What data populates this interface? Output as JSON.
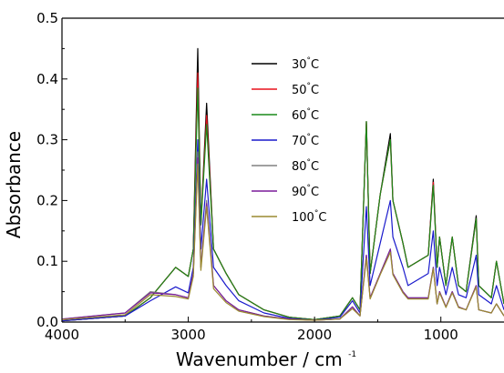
{
  "chart_data": {
    "type": "line",
    "xlabel": "Wavenumber / cm",
    "xlabel_superscript": "-1",
    "ylabel": "Absorbance",
    "xlim": [
      4000,
      500
    ],
    "ylim": [
      0.0,
      0.5
    ],
    "x_reversed": true,
    "grid": false,
    "legend_position": "top-right",
    "xticks": [
      4000,
      3000,
      2000,
      1000
    ],
    "xtick_labels": [
      "4000",
      "3000",
      "2000",
      "1000"
    ],
    "yticks": [
      0.0,
      0.1,
      0.2,
      0.3,
      0.4,
      0.5
    ],
    "ytick_labels": [
      "0.0",
      "0.1",
      "0.2",
      "0.3",
      "0.4",
      "0.5"
    ],
    "series": [
      {
        "name": "30",
        "unit": "°C",
        "color": "#000000",
        "values": [
          [
            4000,
            0.002
          ],
          [
            3500,
            0.01
          ],
          [
            3300,
            0.04
          ],
          [
            3100,
            0.09
          ],
          [
            3000,
            0.075
          ],
          [
            2960,
            0.12
          ],
          [
            2925,
            0.45
          ],
          [
            2900,
            0.16
          ],
          [
            2855,
            0.36
          ],
          [
            2800,
            0.12
          ],
          [
            2700,
            0.08
          ],
          [
            2600,
            0.045
          ],
          [
            2400,
            0.02
          ],
          [
            2200,
            0.008
          ],
          [
            2000,
            0.004
          ],
          [
            1800,
            0.01
          ],
          [
            1700,
            0.04
          ],
          [
            1640,
            0.02
          ],
          [
            1590,
            0.33
          ],
          [
            1560,
            0.08
          ],
          [
            1480,
            0.21
          ],
          [
            1400,
            0.31
          ],
          [
            1380,
            0.2
          ],
          [
            1300,
            0.13
          ],
          [
            1260,
            0.09
          ],
          [
            1100,
            0.11
          ],
          [
            1060,
            0.235
          ],
          [
            1030,
            0.09
          ],
          [
            1010,
            0.14
          ],
          [
            960,
            0.06
          ],
          [
            910,
            0.14
          ],
          [
            860,
            0.06
          ],
          [
            800,
            0.05
          ],
          [
            720,
            0.175
          ],
          [
            700,
            0.06
          ],
          [
            600,
            0.04
          ],
          [
            560,
            0.1
          ],
          [
            500,
            0.03
          ]
        ]
      },
      {
        "name": "50",
        "unit": "°C",
        "color": "#e8101c",
        "values": [
          [
            4000,
            0.002
          ],
          [
            3500,
            0.01
          ],
          [
            3300,
            0.04
          ],
          [
            3100,
            0.09
          ],
          [
            3000,
            0.075
          ],
          [
            2960,
            0.12
          ],
          [
            2925,
            0.41
          ],
          [
            2900,
            0.16
          ],
          [
            2855,
            0.34
          ],
          [
            2800,
            0.12
          ],
          [
            2700,
            0.08
          ],
          [
            2600,
            0.045
          ],
          [
            2400,
            0.02
          ],
          [
            2200,
            0.008
          ],
          [
            2000,
            0.004
          ],
          [
            1800,
            0.01
          ],
          [
            1700,
            0.04
          ],
          [
            1640,
            0.02
          ],
          [
            1590,
            0.33
          ],
          [
            1560,
            0.08
          ],
          [
            1480,
            0.21
          ],
          [
            1400,
            0.3
          ],
          [
            1380,
            0.2
          ],
          [
            1300,
            0.13
          ],
          [
            1260,
            0.09
          ],
          [
            1100,
            0.11
          ],
          [
            1060,
            0.23
          ],
          [
            1030,
            0.09
          ],
          [
            1010,
            0.14
          ],
          [
            960,
            0.06
          ],
          [
            910,
            0.14
          ],
          [
            860,
            0.06
          ],
          [
            800,
            0.05
          ],
          [
            720,
            0.17
          ],
          [
            700,
            0.06
          ],
          [
            600,
            0.04
          ],
          [
            560,
            0.1
          ],
          [
            500,
            0.03
          ]
        ]
      },
      {
        "name": "60",
        "unit": "°C",
        "color": "#1a8a1a",
        "values": [
          [
            4000,
            0.002
          ],
          [
            3500,
            0.01
          ],
          [
            3300,
            0.04
          ],
          [
            3100,
            0.09
          ],
          [
            3000,
            0.075
          ],
          [
            2960,
            0.12
          ],
          [
            2925,
            0.385
          ],
          [
            2900,
            0.16
          ],
          [
            2855,
            0.325
          ],
          [
            2800,
            0.12
          ],
          [
            2700,
            0.08
          ],
          [
            2600,
            0.045
          ],
          [
            2400,
            0.02
          ],
          [
            2200,
            0.008
          ],
          [
            2000,
            0.004
          ],
          [
            1800,
            0.01
          ],
          [
            1700,
            0.04
          ],
          [
            1640,
            0.02
          ],
          [
            1590,
            0.33
          ],
          [
            1560,
            0.08
          ],
          [
            1480,
            0.21
          ],
          [
            1400,
            0.3
          ],
          [
            1380,
            0.2
          ],
          [
            1300,
            0.13
          ],
          [
            1260,
            0.09
          ],
          [
            1100,
            0.11
          ],
          [
            1060,
            0.225
          ],
          [
            1030,
            0.09
          ],
          [
            1010,
            0.14
          ],
          [
            960,
            0.06
          ],
          [
            910,
            0.14
          ],
          [
            860,
            0.06
          ],
          [
            800,
            0.05
          ],
          [
            720,
            0.17
          ],
          [
            700,
            0.06
          ],
          [
            600,
            0.04
          ],
          [
            560,
            0.1
          ],
          [
            500,
            0.03
          ]
        ]
      },
      {
        "name": "70",
        "unit": "°C",
        "color": "#1a1acc",
        "values": [
          [
            4000,
            0.002
          ],
          [
            3500,
            0.01
          ],
          [
            3300,
            0.035
          ],
          [
            3100,
            0.058
          ],
          [
            3000,
            0.048
          ],
          [
            2960,
            0.09
          ],
          [
            2925,
            0.3
          ],
          [
            2900,
            0.12
          ],
          [
            2855,
            0.235
          ],
          [
            2800,
            0.09
          ],
          [
            2700,
            0.06
          ],
          [
            2600,
            0.035
          ],
          [
            2400,
            0.015
          ],
          [
            2200,
            0.006
          ],
          [
            2000,
            0.003
          ],
          [
            1800,
            0.008
          ],
          [
            1700,
            0.035
          ],
          [
            1640,
            0.015
          ],
          [
            1590,
            0.19
          ],
          [
            1560,
            0.06
          ],
          [
            1480,
            0.13
          ],
          [
            1400,
            0.2
          ],
          [
            1380,
            0.14
          ],
          [
            1300,
            0.09
          ],
          [
            1260,
            0.06
          ],
          [
            1100,
            0.08
          ],
          [
            1060,
            0.15
          ],
          [
            1030,
            0.06
          ],
          [
            1010,
            0.09
          ],
          [
            960,
            0.045
          ],
          [
            910,
            0.09
          ],
          [
            860,
            0.045
          ],
          [
            800,
            0.04
          ],
          [
            720,
            0.11
          ],
          [
            700,
            0.045
          ],
          [
            600,
            0.03
          ],
          [
            560,
            0.06
          ],
          [
            500,
            0.02
          ]
        ]
      },
      {
        "name": "80",
        "unit": "°C",
        "color": "#808080",
        "values": [
          [
            4000,
            0.005
          ],
          [
            3500,
            0.015
          ],
          [
            3300,
            0.05
          ],
          [
            3100,
            0.045
          ],
          [
            3000,
            0.04
          ],
          [
            2960,
            0.08
          ],
          [
            2925,
            0.28
          ],
          [
            2900,
            0.09
          ],
          [
            2855,
            0.2
          ],
          [
            2800,
            0.06
          ],
          [
            2700,
            0.035
          ],
          [
            2600,
            0.02
          ],
          [
            2400,
            0.01
          ],
          [
            2200,
            0.005
          ],
          [
            2000,
            0.003
          ],
          [
            1800,
            0.005
          ],
          [
            1700,
            0.025
          ],
          [
            1640,
            0.01
          ],
          [
            1590,
            0.11
          ],
          [
            1560,
            0.04
          ],
          [
            1480,
            0.08
          ],
          [
            1400,
            0.12
          ],
          [
            1380,
            0.08
          ],
          [
            1300,
            0.05
          ],
          [
            1260,
            0.04
          ],
          [
            1100,
            0.04
          ],
          [
            1060,
            0.09
          ],
          [
            1030,
            0.03
          ],
          [
            1010,
            0.05
          ],
          [
            960,
            0.025
          ],
          [
            910,
            0.05
          ],
          [
            860,
            0.025
          ],
          [
            800,
            0.02
          ],
          [
            720,
            0.06
          ],
          [
            700,
            0.02
          ],
          [
            600,
            0.015
          ],
          [
            560,
            0.03
          ],
          [
            500,
            0.01
          ]
        ]
      },
      {
        "name": "90",
        "unit": "°C",
        "color": "#7a1a9a",
        "values": [
          [
            4000,
            0.005
          ],
          [
            3500,
            0.015
          ],
          [
            3300,
            0.048
          ],
          [
            3100,
            0.045
          ],
          [
            3000,
            0.04
          ],
          [
            2960,
            0.08
          ],
          [
            2925,
            0.27
          ],
          [
            2900,
            0.09
          ],
          [
            2855,
            0.195
          ],
          [
            2800,
            0.06
          ],
          [
            2700,
            0.035
          ],
          [
            2600,
            0.02
          ],
          [
            2400,
            0.01
          ],
          [
            2200,
            0.005
          ],
          [
            2000,
            0.003
          ],
          [
            1800,
            0.005
          ],
          [
            1700,
            0.025
          ],
          [
            1640,
            0.01
          ],
          [
            1590,
            0.11
          ],
          [
            1560,
            0.04
          ],
          [
            1480,
            0.08
          ],
          [
            1400,
            0.12
          ],
          [
            1380,
            0.08
          ],
          [
            1300,
            0.05
          ],
          [
            1260,
            0.04
          ],
          [
            1100,
            0.04
          ],
          [
            1060,
            0.09
          ],
          [
            1030,
            0.03
          ],
          [
            1010,
            0.05
          ],
          [
            960,
            0.025
          ],
          [
            910,
            0.05
          ],
          [
            860,
            0.025
          ],
          [
            800,
            0.02
          ],
          [
            720,
            0.06
          ],
          [
            700,
            0.02
          ],
          [
            600,
            0.015
          ],
          [
            560,
            0.03
          ],
          [
            500,
            0.01
          ]
        ]
      },
      {
        "name": "100",
        "unit": "°C",
        "color": "#9a8a30",
        "values": [
          [
            4000,
            0.004
          ],
          [
            3500,
            0.012
          ],
          [
            3300,
            0.045
          ],
          [
            3100,
            0.042
          ],
          [
            3000,
            0.038
          ],
          [
            2960,
            0.075
          ],
          [
            2925,
            0.26
          ],
          [
            2900,
            0.085
          ],
          [
            2855,
            0.19
          ],
          [
            2800,
            0.055
          ],
          [
            2700,
            0.032
          ],
          [
            2600,
            0.018
          ],
          [
            2400,
            0.009
          ],
          [
            2200,
            0.004
          ],
          [
            2000,
            0.003
          ],
          [
            1800,
            0.005
          ],
          [
            1700,
            0.022
          ],
          [
            1640,
            0.01
          ],
          [
            1590,
            0.105
          ],
          [
            1560,
            0.038
          ],
          [
            1480,
            0.078
          ],
          [
            1400,
            0.115
          ],
          [
            1380,
            0.078
          ],
          [
            1300,
            0.048
          ],
          [
            1260,
            0.038
          ],
          [
            1100,
            0.038
          ],
          [
            1060,
            0.088
          ],
          [
            1030,
            0.03
          ],
          [
            1010,
            0.048
          ],
          [
            960,
            0.024
          ],
          [
            910,
            0.048
          ],
          [
            860,
            0.024
          ],
          [
            800,
            0.02
          ],
          [
            720,
            0.058
          ],
          [
            700,
            0.02
          ],
          [
            600,
            0.015
          ],
          [
            560,
            0.03
          ],
          [
            500,
            0.01
          ]
        ]
      }
    ]
  }
}
